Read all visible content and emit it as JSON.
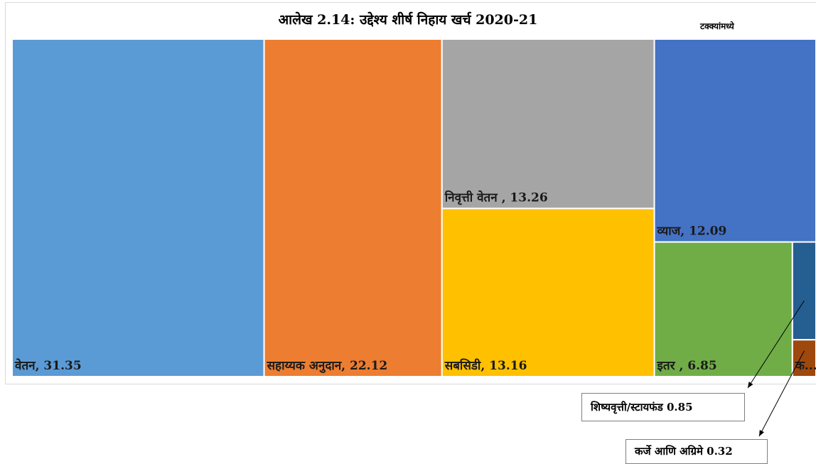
{
  "chart_data": {
    "type": "treemap",
    "title": "आलेख 2.14: उद्देश्य शीर्ष निहाय खर्च 2020-21",
    "unit_label": "टक्क्यांमध्ये",
    "items": [
      {
        "label": "वेतन",
        "value": 31.35,
        "display": "वेतन, 31.35",
        "color": "#5b9bd5"
      },
      {
        "label": "सहाय्यक अनुदान",
        "value": 22.12,
        "display": "सहाय्यक अनुदान, 22.12",
        "color": "#ed7d31"
      },
      {
        "label": "निवृत्ती वेतन",
        "value": 13.26,
        "display": "निवृत्ती वेतन , 13.26",
        "color": "#a5a5a5"
      },
      {
        "label": "सबसिडी",
        "value": 13.16,
        "display": "सबसिडी, 13.16",
        "color": "#ffc000"
      },
      {
        "label": "व्याज",
        "value": 12.09,
        "display": "व्याज, 12.09",
        "color": "#4472c4"
      },
      {
        "label": "इतर",
        "value": 6.85,
        "display": "इतर , 6.85",
        "color": "#70ad47"
      },
      {
        "label": "शिष्यवृत्ती/स्टायफंड",
        "value": 0.85,
        "display": "",
        "color": "#255e91"
      },
      {
        "label": "कर्जे आणि अग्रिमे",
        "value": 0.32,
        "display": "क...",
        "color": "#9e480e"
      }
    ],
    "callouts": {
      "scholarship": "शिष्यवृत्ती/स्टायफंड  0.85",
      "loans": "कर्जे आणि अग्रिमे 0.32"
    }
  }
}
